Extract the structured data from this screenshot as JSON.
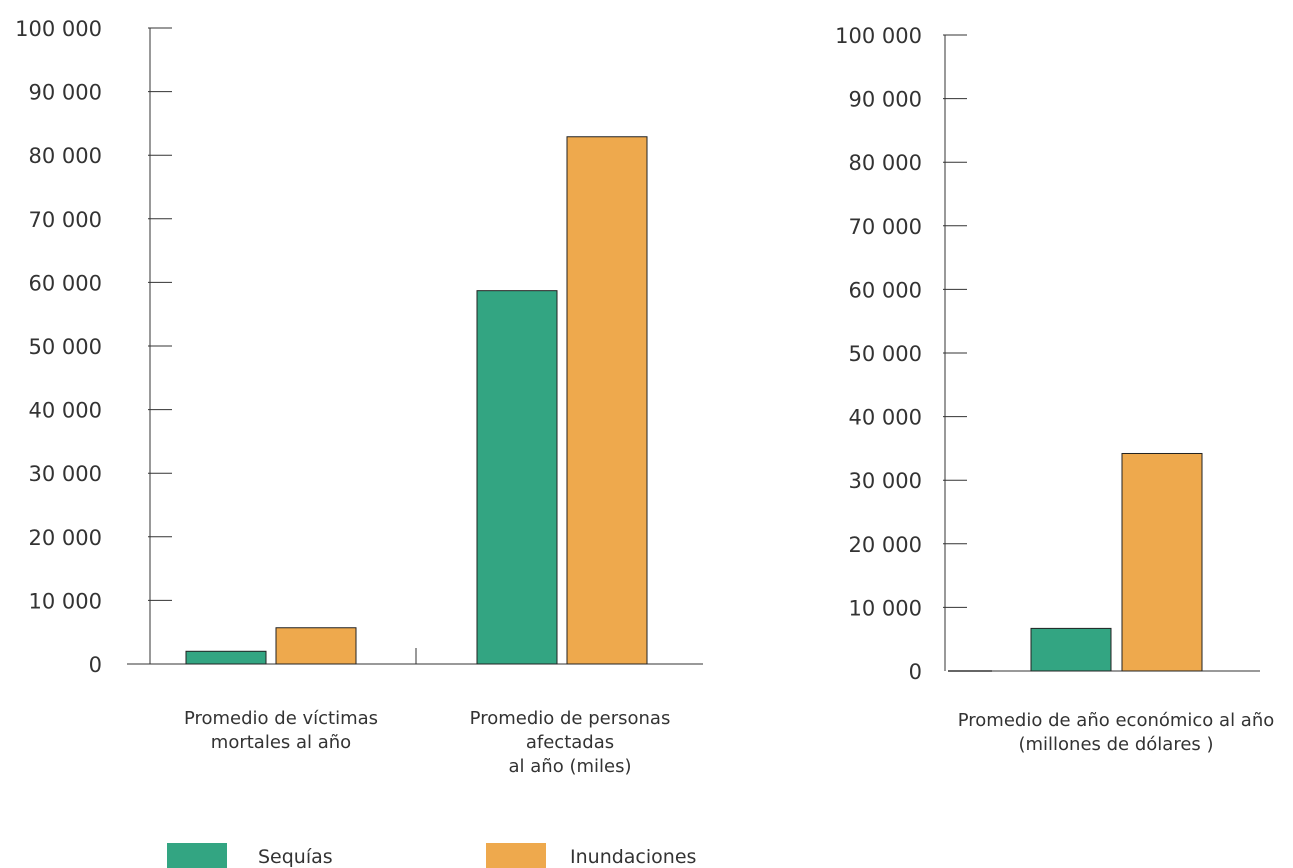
{
  "colors": {
    "sequias": "#33a582",
    "inundaciones": "#eea94d",
    "axis": "#333333"
  },
  "legend": [
    {
      "name": "Sequías",
      "color": "#33a582"
    },
    {
      "name": "Inundaciones",
      "color": "#eea94d"
    }
  ],
  "chart_data": [
    {
      "type": "bar",
      "categories": [
        [
          "Promedio de víctimas",
          "mortales al año"
        ],
        [
          "Promedio de personas",
          "afectadas",
          "al año (miles)"
        ]
      ],
      "series": [
        {
          "name": "Sequías",
          "values": [
            2000,
            58700
          ]
        },
        {
          "name": "Inundaciones",
          "values": [
            5700,
            82900
          ]
        }
      ],
      "ylim": [
        0,
        100000
      ],
      "yticks": [
        "0",
        "10 000",
        "20 000",
        "30 000",
        "40 000",
        "50 000",
        "60 000",
        "70 000",
        "80 000",
        "90 000",
        "100 000"
      ],
      "grid": false
    },
    {
      "type": "bar",
      "categories": [
        [
          "Promedio de año económico al año",
          "(millones de dólares )"
        ]
      ],
      "series": [
        {
          "name": "Sequías",
          "values": [
            6700
          ]
        },
        {
          "name": "Inundaciones",
          "values": [
            34200
          ]
        }
      ],
      "ylim": [
        0,
        100000
      ],
      "yticks": [
        "0",
        "10 000",
        "20 000",
        "30 000",
        "40 000",
        "50 000",
        "60 000",
        "70 000",
        "80 000",
        "90 000",
        "100 000"
      ],
      "grid": false
    }
  ]
}
